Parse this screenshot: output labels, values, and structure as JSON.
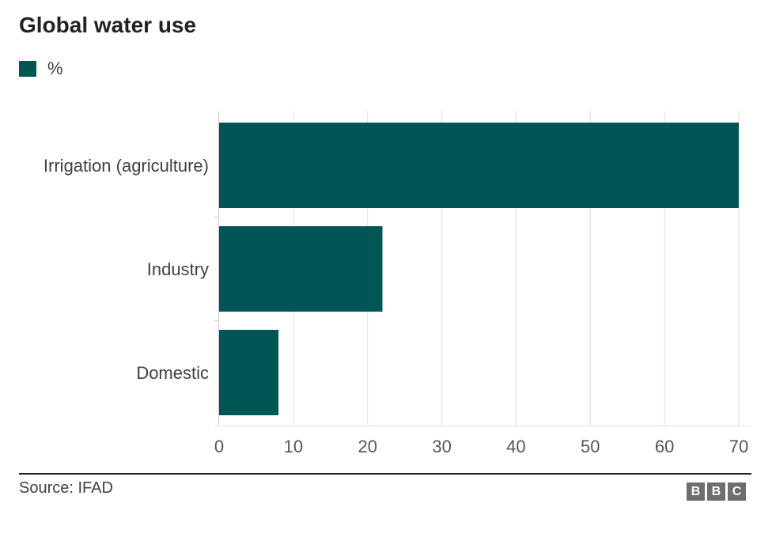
{
  "colors": {
    "bar": "#005555",
    "grid": "#dedede",
    "axis_text": "#555555",
    "category_text": "#404040"
  },
  "chart_data": {
    "type": "bar",
    "orientation": "horizontal",
    "title": "Global water use",
    "legend": [
      "%"
    ],
    "categories": [
      "Irrigation (agriculture)",
      "Industry",
      "Domestic"
    ],
    "values": [
      70,
      22,
      8
    ],
    "xlim": [
      0,
      70
    ],
    "xticks": [
      0,
      10,
      20,
      30,
      40,
      50,
      60,
      70
    ],
    "grid": true,
    "legend_position": "top-left"
  },
  "footer": {
    "source": "Source: IFAD",
    "logo_letters": [
      "B",
      "B",
      "C"
    ]
  }
}
